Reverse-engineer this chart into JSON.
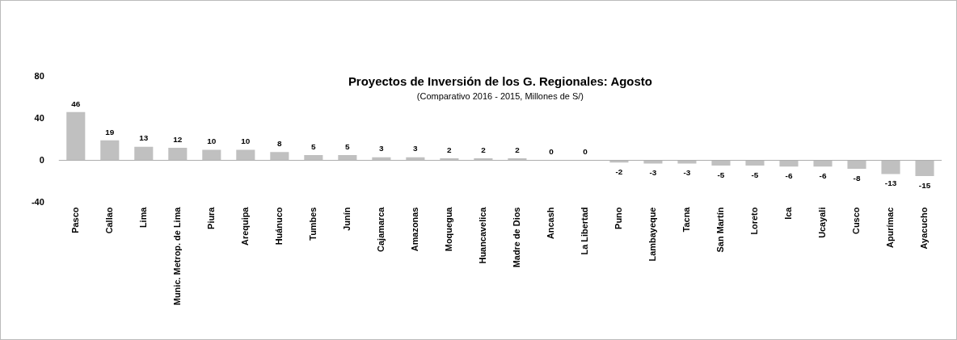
{
  "chart_data": {
    "type": "bar",
    "title": "Proyectos de Inversión de los G. Regionales: Agosto",
    "subtitle": "(Comparativo 2016 - 2015, Millones de S/)",
    "categories": [
      "Pasco",
      "Callao",
      "Lima",
      "Munic. Metrop. de Lima",
      "Piura",
      "Arequipa",
      "Huánuco",
      "Tumbes",
      "Junín",
      "Cajamarca",
      "Amazonas",
      "Moquegua",
      "Huancavelica",
      "Madre de Dios",
      "Ancash",
      "La Libertad",
      "Puno",
      "Lambayeque",
      "Tacna",
      "San Martín",
      "Loreto",
      "Ica",
      "Ucayali",
      "Cusco",
      "Apurímac",
      "Ayacucho"
    ],
    "values": [
      46,
      19,
      13,
      12,
      10,
      10,
      8,
      5,
      5,
      3,
      3,
      2,
      2,
      2,
      0,
      0,
      -2,
      -3,
      -3,
      -5,
      -5,
      -6,
      -6,
      -8,
      -13,
      -15
    ],
    "color": "#c0c0c0",
    "ylim": [
      -40,
      80
    ],
    "yticks": [
      -40,
      0,
      40,
      80
    ],
    "data_labels": true,
    "legend": false,
    "ref_lines": [
      {
        "axis": "y",
        "value": 0,
        "color": "#aaaaaa"
      }
    ]
  }
}
